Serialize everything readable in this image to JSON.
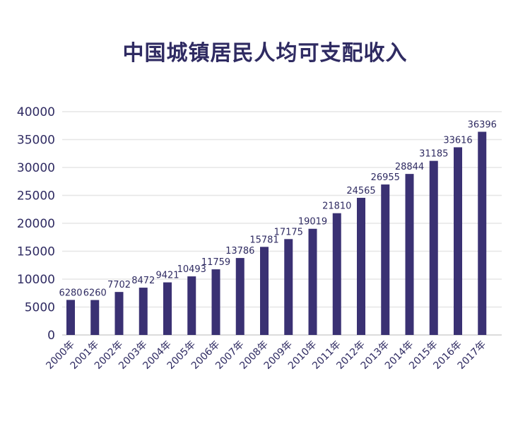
{
  "chart_data": {
    "type": "bar",
    "title": "中国城镇居民人均可支配收入",
    "xlabel": "",
    "ylabel": "",
    "categories": [
      "2000年",
      "2001年",
      "2002年",
      "2003年",
      "2004年",
      "2005年",
      "2006年",
      "2007年",
      "2008年",
      "2009年",
      "2010年",
      "2011年",
      "2012年",
      "2013年",
      "2014年",
      "2015年",
      "2016年",
      "2017年"
    ],
    "values": [
      6280,
      6260,
      7702,
      8472,
      9421,
      10493,
      11759,
      13786,
      15781,
      17175,
      19019,
      21810,
      24565,
      26955,
      28844,
      31185,
      33616,
      36396
    ],
    "data_labels": [
      "6280",
      "6260",
      "7702",
      "8472",
      "9421",
      "10493",
      "11759",
      "13786",
      "15781",
      "17175",
      "19019",
      "21810",
      "24565",
      "26955",
      "28844",
      "31185",
      "33616",
      "36396"
    ],
    "ylim": [
      0,
      40000
    ],
    "yticks": [
      "0",
      "5000",
      "10000",
      "15000",
      "20000",
      "25000",
      "30000",
      "35000",
      "40000"
    ],
    "grid": true,
    "legend": "none",
    "colors": {
      "bar": "#3a3173",
      "title": "#2f2b62",
      "text": "#2f2b62",
      "grid": "#e6e6e6"
    }
  }
}
